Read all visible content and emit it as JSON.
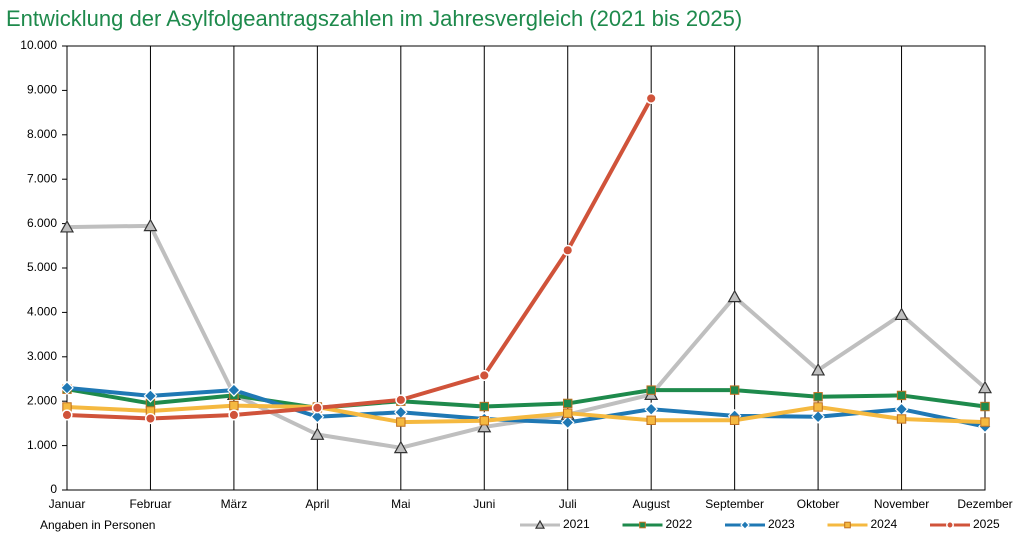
{
  "chart_data": {
    "type": "line",
    "title": "Entwicklung der Asylfolgeantragszahlen im Jahresvergleich (2021 bis 2025)",
    "note": "Angaben in Personen",
    "categories": [
      "Januar",
      "Februar",
      "März",
      "April",
      "Mai",
      "Juni",
      "Juli",
      "August",
      "September",
      "Oktober",
      "November",
      "Dezember"
    ],
    "ylim": [
      0,
      10000
    ],
    "yticks": [
      0,
      {
        "value": 1000,
        "label": "1.000"
      },
      {
        "value": 2000,
        "label": "2.000"
      },
      {
        "value": 3000,
        "label": "3.000"
      },
      {
        "value": 4000,
        "label": "4.000"
      },
      {
        "value": 5000,
        "label": "5.000"
      },
      {
        "value": 6000,
        "label": "6.000"
      },
      {
        "value": 7000,
        "label": "7.000"
      },
      {
        "value": 8000,
        "label": "8.000"
      },
      {
        "value": 9000,
        "label": "9.000"
      },
      {
        "value": 10000,
        "label": "10.000"
      }
    ],
    "legend": "bottom-right",
    "series": [
      {
        "name": "2021",
        "color": "#bfbfbf",
        "marker": "triangle",
        "values": [
          5920,
          5950,
          2150,
          1250,
          950,
          1420,
          1700,
          2150,
          4350,
          2700,
          3950,
          2300
        ]
      },
      {
        "name": "2022",
        "color": "#1e8a4c",
        "marker": "square",
        "values": [
          2270,
          1950,
          2130,
          1850,
          2000,
          1880,
          1950,
          2250,
          2250,
          2100,
          2130,
          1880
        ]
      },
      {
        "name": "2023",
        "color": "#1f78b4",
        "marker": "diamond",
        "values": [
          2300,
          2120,
          2250,
          1650,
          1750,
          1600,
          1520,
          1820,
          1670,
          1650,
          1820,
          1430
        ]
      },
      {
        "name": "2024",
        "color": "#f5b940",
        "marker": "square",
        "values": [
          1870,
          1780,
          1900,
          1870,
          1530,
          1560,
          1730,
          1570,
          1570,
          1870,
          1600,
          1530
        ]
      },
      {
        "name": "2025",
        "color": "#d0533a",
        "marker": "circle",
        "values": [
          1690,
          1610,
          1690,
          1850,
          2030,
          2580,
          5400,
          8820,
          null,
          null,
          null,
          null
        ]
      }
    ]
  }
}
